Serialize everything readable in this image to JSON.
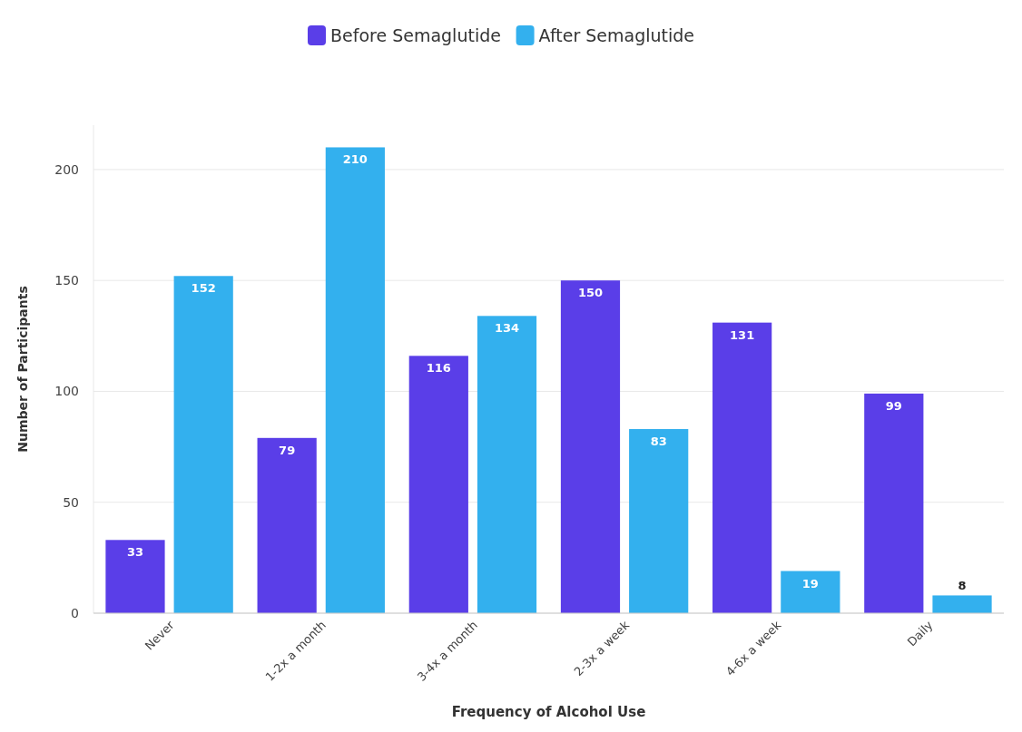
{
  "chart_data": {
    "type": "bar",
    "xlabel": "Frequency of Alcohol Use",
    "ylabel": "Number of Participants",
    "categories": [
      "Never",
      "1-2x a month",
      "3-4x a month",
      "2-3x a week",
      "4-6x a week",
      "Daily"
    ],
    "series": [
      {
        "name": "Before Semaglutide",
        "color": "#5a3ee8",
        "values": [
          33,
          79,
          116,
          150,
          131,
          99
        ]
      },
      {
        "name": "After Semaglutide",
        "color": "#33b0ee",
        "values": [
          152,
          210,
          134,
          83,
          19,
          8
        ]
      }
    ],
    "ylim": [
      0,
      220
    ],
    "yticks": [
      0,
      50,
      100,
      150,
      200
    ],
    "grid": "y",
    "legend": "top",
    "data_labels": true
  }
}
